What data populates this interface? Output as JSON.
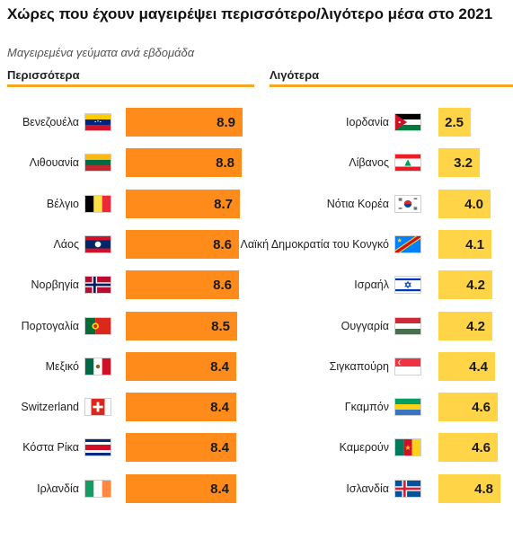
{
  "title": "Χώρες που έχουν μαγειρέψει περισσότερο/λιγότερο μέσα στο 2021",
  "subtitle": "Μαγειρεμένα γεύματα ανά εβδομάδα",
  "colors": {
    "more_bar": "#ff8c1a",
    "less_bar": "#ffd447",
    "rule": "#f5a623"
  },
  "chart_data": [
    {
      "type": "bar",
      "orientation": "horizontal",
      "title": "Περισσότερα",
      "categories": [
        "Βενεζουέλα",
        "Λιθουανία",
        "Βέλγιο",
        "Λάος",
        "Νορβηγία",
        "Πορτογαλία",
        "Μεξικό",
        "Switzerland",
        "Κόστα Ρίκα",
        "Ιρλανδία"
      ],
      "values": [
        8.9,
        8.8,
        8.7,
        8.6,
        8.6,
        8.5,
        8.4,
        8.4,
        8.4,
        8.4
      ],
      "flags": [
        "venezuela-flag-icon",
        "lithuania-flag-icon",
        "belgium-flag-icon",
        "laos-flag-icon",
        "norway-flag-icon",
        "portugal-flag-icon",
        "mexico-flag-icon",
        "switzerland-flag-icon",
        "costa-rica-flag-icon",
        "ireland-flag-icon"
      ],
      "xlim": [
        0,
        8.9
      ],
      "grid": false,
      "data_labels": true
    },
    {
      "type": "bar",
      "orientation": "horizontal",
      "title": "Λιγότερα",
      "categories": [
        "Ιορδανία",
        "Λίβανος",
        "Νότια Κορέα",
        "Λαϊκή Δημοκρατία του Κονγκό",
        "Ισραήλ",
        "Ουγγαρία",
        "Σιγκαπούρη",
        "Γκαμπόν",
        "Καμερούν",
        "Ισλανδία"
      ],
      "values": [
        2.5,
        3.2,
        4.0,
        4.1,
        4.2,
        4.2,
        4.4,
        4.6,
        4.6,
        4.8
      ],
      "flags": [
        "jordan-flag-icon",
        "lebanon-flag-icon",
        "south-korea-flag-icon",
        "dr-congo-flag-icon",
        "israel-flag-icon",
        "hungary-flag-icon",
        "singapore-flag-icon",
        "gabon-flag-icon",
        "cameroon-flag-icon",
        "iceland-flag-icon"
      ],
      "xlim": [
        0,
        4.8
      ],
      "grid": false,
      "data_labels": true
    }
  ]
}
